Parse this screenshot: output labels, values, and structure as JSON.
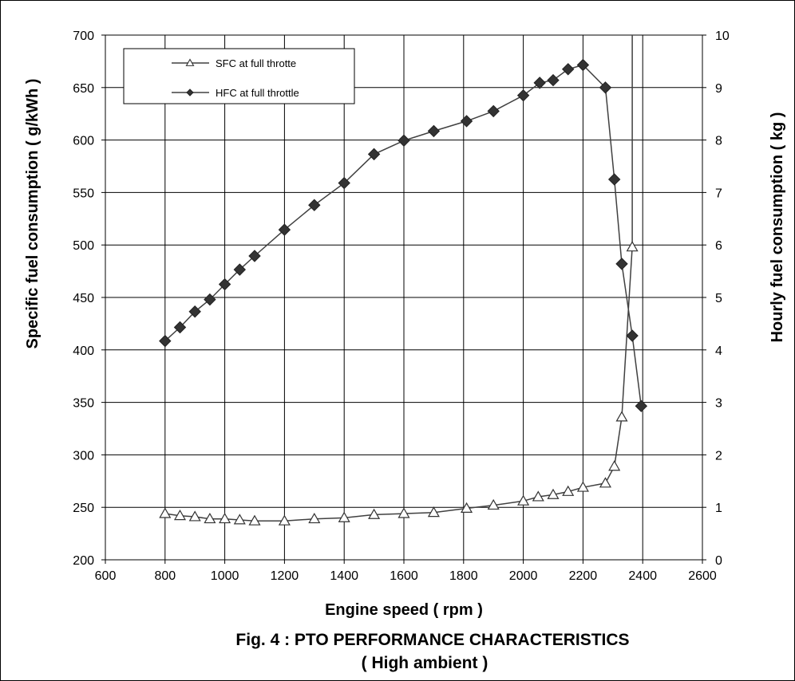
{
  "chart_data": {
    "type": "line",
    "x_label": "Engine speed ( rpm )",
    "y_left_label": "Specific fuel consumption ( g/kWh )",
    "y_right_label": "Hourly fuel consumption ( kg )",
    "xlim": [
      600,
      2600
    ],
    "ylim_left": [
      200,
      700
    ],
    "ylim_right": [
      0,
      10
    ],
    "x_ticks": [
      "600",
      "800",
      "1000",
      "1200",
      "1400",
      "1600",
      "1800",
      "2000",
      "2200",
      "2400",
      "2600"
    ],
    "y_left_ticks": [
      "200",
      "250",
      "300",
      "350",
      "400",
      "450",
      "500",
      "550",
      "600",
      "650",
      "700"
    ],
    "y_right_ticks": [
      "0",
      "1",
      "2",
      "3",
      "4",
      "5",
      "6",
      "7",
      "8",
      "9",
      "10"
    ],
    "grid": true,
    "legend_position": "top-left",
    "series": [
      {
        "name": "SFC at full throtte",
        "axis": "left",
        "marker": "triangle-open",
        "x": [
          800,
          850,
          900,
          950,
          1000,
          1050,
          1100,
          1200,
          1300,
          1400,
          1500,
          1600,
          1700,
          1810,
          1900,
          2000,
          2050,
          2100,
          2150,
          2200,
          2275,
          2305,
          2330,
          2365
        ],
        "y": [
          244,
          242,
          241,
          239,
          239,
          238,
          237,
          237,
          239,
          240,
          243,
          244,
          245,
          249,
          252,
          256,
          260,
          262,
          265,
          269,
          273,
          289,
          336,
          498
        ],
        "extra_segment_to": {
          "x": 2365,
          "y": 700
        }
      },
      {
        "name": "HFC at full throttle",
        "axis": "right",
        "marker": "diamond",
        "x": [
          800,
          850,
          900,
          950,
          1000,
          1050,
          1100,
          1200,
          1300,
          1400,
          1500,
          1600,
          1700,
          1810,
          1900,
          2000,
          2055,
          2100,
          2150,
          2200,
          2275,
          2305,
          2330,
          2365,
          2395
        ],
        "y": [
          4.17,
          4.43,
          4.73,
          4.96,
          5.25,
          5.53,
          5.79,
          6.29,
          6.76,
          7.18,
          7.73,
          7.99,
          8.17,
          8.36,
          8.55,
          8.85,
          9.09,
          9.14,
          9.35,
          9.43,
          9.0,
          7.25,
          5.64,
          4.27,
          2.93
        ]
      }
    ]
  },
  "caption": {
    "line1": "Fig. 4 : PTO PERFORMANCE CHARACTERISTICS",
    "line2": "( High ambient )"
  }
}
